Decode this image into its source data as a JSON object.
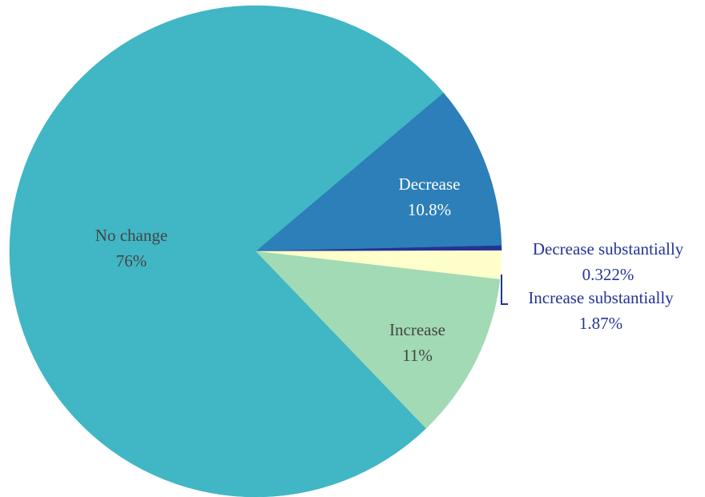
{
  "chart_data": {
    "type": "pie",
    "slices": [
      {
        "label": "Decrease",
        "value": 10.8,
        "percent_text": "10.8%",
        "color": "#2c7fb8",
        "label_color": "#ffffff",
        "label_position": "inside"
      },
      {
        "label": "Decrease substantially",
        "value": 0.322,
        "percent_text": "0.322%",
        "color": "#253494",
        "label_color": "#253494",
        "label_position": "outside"
      },
      {
        "label": "Increase substantially",
        "value": 1.87,
        "percent_text": "1.87%",
        "color": "#ffffcc",
        "label_color": "#253494",
        "label_position": "outside"
      },
      {
        "label": "Increase",
        "value": 11,
        "percent_text": "11%",
        "color": "#a1dab4",
        "label_color": "#444444",
        "label_position": "inside"
      },
      {
        "label": "No change",
        "value": 76,
        "percent_text": "76%",
        "color": "#41b6c4",
        "label_color": "#444444",
        "label_position": "inside"
      }
    ],
    "start_angle_deg": -40.2,
    "direction": "clockwise"
  }
}
